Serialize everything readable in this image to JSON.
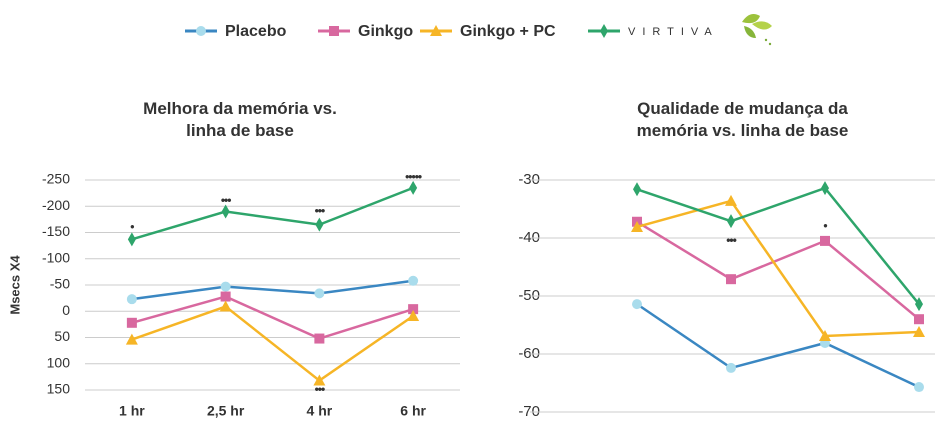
{
  "chart_data": [
    {
      "type": "line",
      "title": "Melhora da memória vs. linha de base",
      "y_label": "Msecs X4",
      "categories": [
        "1 hr",
        "2,5 hr",
        "4 hr",
        "6 hr"
      ],
      "ylim": [
        -250,
        150
      ],
      "yticks": [
        -250,
        -200,
        -150,
        -100,
        -50,
        0,
        50,
        100,
        150
      ],
      "y_inverted": true,
      "grid": true,
      "series": [
        {
          "name": "Placebo",
          "color": "#3a87c2",
          "marker": "circle",
          "marker_color": "#a9dcec",
          "values": [
            -23,
            -47,
            -34,
            -58
          ]
        },
        {
          "name": "Ginkgo",
          "color": "#d8689f",
          "marker": "square",
          "marker_color": "#d8689f",
          "values": [
            22,
            -28,
            52,
            -4
          ]
        },
        {
          "name": "Ginkgo + PC",
          "color": "#f6b526",
          "marker": "triangle",
          "marker_color": "#f6b526",
          "values": [
            54,
            -9,
            132,
            9
          ]
        },
        {
          "name": "VIRTIVA",
          "color": "#2ea56b",
          "marker": "diamond",
          "marker_color": "#2ea56b",
          "values": [
            -137,
            -190,
            -165,
            -235
          ]
        }
      ],
      "annotations": [
        {
          "text": "•",
          "x": 0,
          "y": -160
        },
        {
          "text": "•••",
          "x": 1,
          "y": -210
        },
        {
          "text": "•••",
          "x": 2,
          "y": -190
        },
        {
          "text": "•••••",
          "x": 3,
          "y": -255
        },
        {
          "text": "•••",
          "x": 2,
          "y": 150
        }
      ]
    },
    {
      "type": "line",
      "title": "Qualidade de mudança da memória vs. linha de base",
      "categories": [
        null,
        null,
        null,
        null
      ],
      "ylim": [
        -30,
        -70
      ],
      "yticks": [
        -30,
        -40,
        -50,
        -60,
        -70
      ],
      "grid": true,
      "series": [
        {
          "name": "Placebo",
          "color": "#3a87c2",
          "marker": "circle",
          "marker_color": "#a9dcec",
          "values": [
            -51.4,
            -62.4,
            -58.1,
            -65.7
          ]
        },
        {
          "name": "Ginkgo",
          "color": "#d8689f",
          "marker": "square",
          "marker_color": "#d8689f",
          "values": [
            -37.2,
            -47.1,
            -40.5,
            -54
          ]
        },
        {
          "name": "Ginkgo + PC",
          "color": "#f6b526",
          "marker": "triangle",
          "marker_color": "#f6b526",
          "values": [
            -38.1,
            -33.6,
            -56.9,
            -56.2
          ]
        },
        {
          "name": "VIRTIVA",
          "color": "#2ea56b",
          "marker": "diamond",
          "marker_color": "#2ea56b",
          "values": [
            -31.6,
            -37.1,
            -31.4,
            -51.4
          ]
        }
      ],
      "annotations": [
        {
          "text": "•••",
          "x": 1,
          "y": -40.5
        },
        {
          "text": "•",
          "x": 2,
          "y": -38
        }
      ]
    }
  ]
}
